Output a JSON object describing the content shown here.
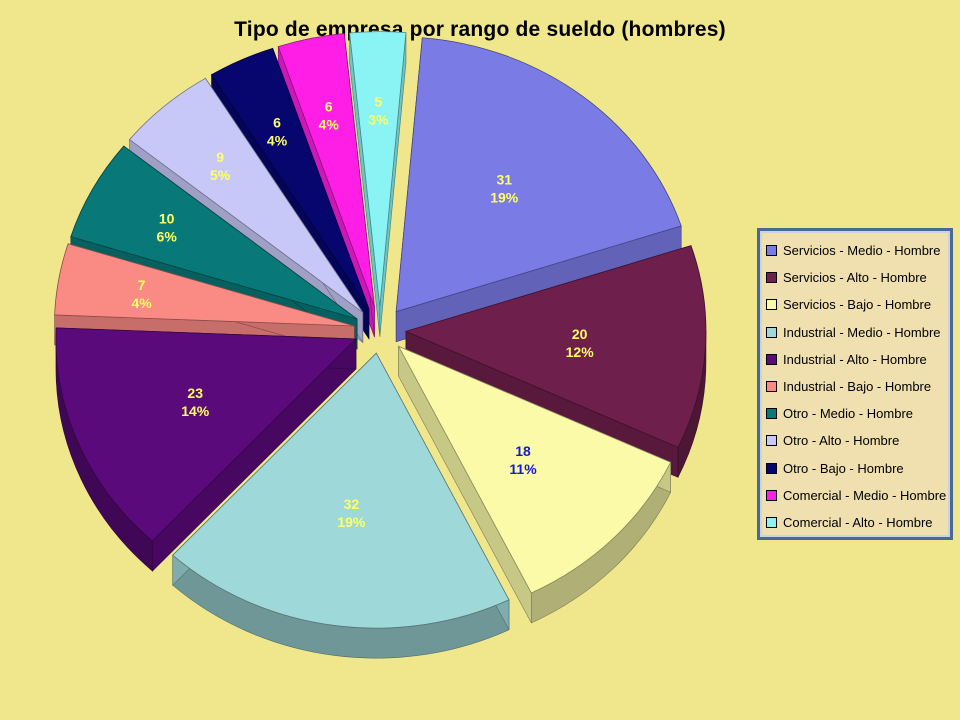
{
  "chart_data": {
    "type": "pie",
    "title": "Tipo de empresa por rango de sueldo (hombres)",
    "legend_position": "right",
    "exploded": true,
    "three_d": true,
    "slices": [
      {
        "label": "Servicios - Medio - Hombre",
        "value": 31,
        "percent": "19%",
        "color": "#7b7be6",
        "text_color": "#ffff66"
      },
      {
        "label": "Servicios - Alto - Hombre",
        "value": 20,
        "percent": "12%",
        "color": "#6e1f4c",
        "text_color": "#ffff66"
      },
      {
        "label": "Servicios - Bajo - Hombre",
        "value": 18,
        "percent": "11%",
        "color": "#fafaa8",
        "text_color": "#1a1acc"
      },
      {
        "label": "Industrial - Medio - Hombre",
        "value": 32,
        "percent": "19%",
        "color": "#9fd8d8",
        "text_color": "#ffff66"
      },
      {
        "label": "Industrial - Alto - Hombre",
        "value": 23,
        "percent": "14%",
        "color": "#5a0a7a",
        "text_color": "#ffff66"
      },
      {
        "label": "Industrial - Bajo - Hombre",
        "value": 7,
        "percent": "4%",
        "color": "#fa8a84",
        "text_color": "#ffff66"
      },
      {
        "label": "Otro - Medio - Hombre",
        "value": 10,
        "percent": "6%",
        "color": "#087878",
        "text_color": "#ffff66"
      },
      {
        "label": "Otro - Alto - Hombre",
        "value": 9,
        "percent": "5%",
        "color": "#c8c8f8",
        "text_color": "#ffff66"
      },
      {
        "label": "Otro - Bajo - Hombre",
        "value": 6,
        "percent": "4%",
        "color": "#06066e",
        "text_color": "#ffff66"
      },
      {
        "label": "Comercial - Medio - Hombre",
        "value": 6,
        "percent": "4%",
        "color": "#ff1ee6",
        "text_color": "#ffff66"
      },
      {
        "label": "Comercial - Alto - Hombre",
        "value": 5,
        "percent": "3%",
        "color": "#8af4f4",
        "text_color": "#ffff66"
      }
    ]
  }
}
